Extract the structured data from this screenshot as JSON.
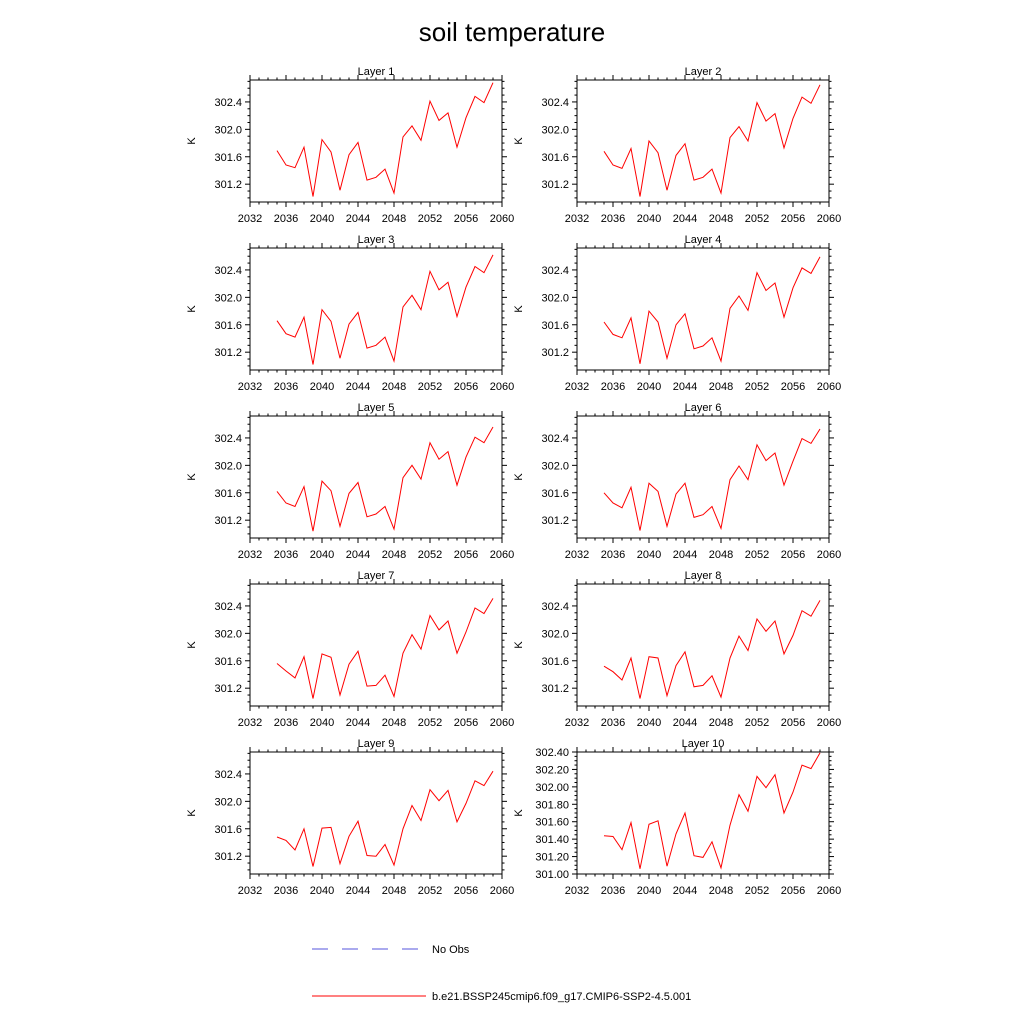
{
  "figure": {
    "title": "soil temperature"
  },
  "chart_data": [
    {
      "type": "line",
      "title": "Layer 1",
      "ylabel": "K",
      "xlim": [
        2032,
        2060
      ],
      "ylim": [
        300.94,
        302.72
      ],
      "xticks": [
        2032,
        2036,
        2040,
        2044,
        2048,
        2052,
        2056,
        2060
      ],
      "yticks": [
        301.2,
        301.6,
        302.0,
        302.4
      ],
      "ytick_labels": [
        "301.2",
        "301.6",
        "302.0",
        "302.4"
      ],
      "x": [
        2035,
        2036,
        2037,
        2038,
        2039,
        2040,
        2041,
        2042,
        2043,
        2044,
        2045,
        2046,
        2047,
        2048,
        2049,
        2050,
        2051,
        2052,
        2053,
        2054,
        2055,
        2056,
        2057,
        2058,
        2059
      ],
      "series": [
        {
          "name": "b.e21.BSSP245cmip6.f09_g17.CMIP6-SSP2-4.5.001",
          "color": "#ff0000",
          "values": [
            301.69,
            301.48,
            301.44,
            301.74,
            301.02,
            301.85,
            301.67,
            301.11,
            301.63,
            301.81,
            301.26,
            301.3,
            301.42,
            301.07,
            301.89,
            302.05,
            301.84,
            302.41,
            302.13,
            302.24,
            301.74,
            302.17,
            302.48,
            302.39,
            302.68
          ]
        }
      ]
    },
    {
      "type": "line",
      "title": "Layer 2",
      "ylabel": "K",
      "xlim": [
        2032,
        2060
      ],
      "ylim": [
        300.94,
        302.72
      ],
      "xticks": [
        2032,
        2036,
        2040,
        2044,
        2048,
        2052,
        2056,
        2060
      ],
      "yticks": [
        301.2,
        301.6,
        302.0,
        302.4
      ],
      "ytick_labels": [
        "301.2",
        "301.6",
        "302.0",
        "302.4"
      ],
      "x": [
        2035,
        2036,
        2037,
        2038,
        2039,
        2040,
        2041,
        2042,
        2043,
        2044,
        2045,
        2046,
        2047,
        2048,
        2049,
        2050,
        2051,
        2052,
        2053,
        2054,
        2055,
        2056,
        2057,
        2058,
        2059
      ],
      "series": [
        {
          "name": "b.e21.BSSP245cmip6.f09_g17.CMIP6-SSP2-4.5.001",
          "color": "#ff0000",
          "values": [
            301.68,
            301.48,
            301.43,
            301.72,
            301.02,
            301.83,
            301.66,
            301.11,
            301.62,
            301.79,
            301.26,
            301.3,
            301.42,
            301.07,
            301.88,
            302.04,
            301.83,
            302.39,
            302.12,
            302.23,
            301.73,
            302.16,
            302.47,
            302.38,
            302.65
          ]
        }
      ]
    },
    {
      "type": "line",
      "title": "Layer 3",
      "ylabel": "K",
      "xlim": [
        2032,
        2060
      ],
      "ylim": [
        300.94,
        302.72
      ],
      "xticks": [
        2032,
        2036,
        2040,
        2044,
        2048,
        2052,
        2056,
        2060
      ],
      "yticks": [
        301.2,
        301.6,
        302.0,
        302.4
      ],
      "ytick_labels": [
        "301.2",
        "301.6",
        "302.0",
        "302.4"
      ],
      "x": [
        2035,
        2036,
        2037,
        2038,
        2039,
        2040,
        2041,
        2042,
        2043,
        2044,
        2045,
        2046,
        2047,
        2048,
        2049,
        2050,
        2051,
        2052,
        2053,
        2054,
        2055,
        2056,
        2057,
        2058,
        2059
      ],
      "series": [
        {
          "name": "b.e21.BSSP245cmip6.f09_g17.CMIP6-SSP2-4.5.001",
          "color": "#ff0000",
          "values": [
            301.66,
            301.47,
            301.42,
            301.71,
            301.02,
            301.82,
            301.65,
            301.11,
            301.61,
            301.78,
            301.26,
            301.3,
            301.42,
            301.07,
            301.86,
            302.03,
            301.82,
            302.38,
            302.11,
            302.22,
            301.72,
            302.15,
            302.45,
            302.36,
            302.62
          ]
        }
      ]
    },
    {
      "type": "line",
      "title": "Layer 4",
      "ylabel": "K",
      "xlim": [
        2032,
        2060
      ],
      "ylim": [
        300.94,
        302.72
      ],
      "xticks": [
        2032,
        2036,
        2040,
        2044,
        2048,
        2052,
        2056,
        2060
      ],
      "yticks": [
        301.2,
        301.6,
        302.0,
        302.4
      ],
      "ytick_labels": [
        "301.2",
        "301.6",
        "302.0",
        "302.4"
      ],
      "x": [
        2035,
        2036,
        2037,
        2038,
        2039,
        2040,
        2041,
        2042,
        2043,
        2044,
        2045,
        2046,
        2047,
        2048,
        2049,
        2050,
        2051,
        2052,
        2053,
        2054,
        2055,
        2056,
        2057,
        2058,
        2059
      ],
      "series": [
        {
          "name": "b.e21.BSSP245cmip6.f09_g17.CMIP6-SSP2-4.5.001",
          "color": "#ff0000",
          "values": [
            301.64,
            301.46,
            301.41,
            301.7,
            301.03,
            301.8,
            301.64,
            301.11,
            301.6,
            301.76,
            301.25,
            301.29,
            301.41,
            301.07,
            301.84,
            302.02,
            301.81,
            302.36,
            302.1,
            302.21,
            301.71,
            302.14,
            302.43,
            302.35,
            302.59
          ]
        }
      ]
    },
    {
      "type": "line",
      "title": "Layer 5",
      "ylabel": "K",
      "xlim": [
        2032,
        2060
      ],
      "ylim": [
        300.94,
        302.72
      ],
      "xticks": [
        2032,
        2036,
        2040,
        2044,
        2048,
        2052,
        2056,
        2060
      ],
      "yticks": [
        301.2,
        301.6,
        302.0,
        302.4
      ],
      "ytick_labels": [
        "301.2",
        "301.6",
        "302.0",
        "302.4"
      ],
      "x": [
        2035,
        2036,
        2037,
        2038,
        2039,
        2040,
        2041,
        2042,
        2043,
        2044,
        2045,
        2046,
        2047,
        2048,
        2049,
        2050,
        2051,
        2052,
        2053,
        2054,
        2055,
        2056,
        2057,
        2058,
        2059
      ],
      "series": [
        {
          "name": "b.e21.BSSP245cmip6.f09_g17.CMIP6-SSP2-4.5.001",
          "color": "#ff0000",
          "values": [
            301.62,
            301.45,
            301.4,
            301.69,
            301.04,
            301.77,
            301.63,
            301.11,
            301.59,
            301.75,
            301.25,
            301.29,
            301.4,
            301.07,
            301.82,
            302.0,
            301.8,
            302.33,
            302.09,
            302.2,
            301.71,
            302.12,
            302.41,
            302.33,
            302.56
          ]
        }
      ]
    },
    {
      "type": "line",
      "title": "Layer 6",
      "ylabel": "K",
      "xlim": [
        2032,
        2060
      ],
      "ylim": [
        300.94,
        302.72
      ],
      "xticks": [
        2032,
        2036,
        2040,
        2044,
        2048,
        2052,
        2056,
        2060
      ],
      "yticks": [
        301.2,
        301.6,
        302.0,
        302.4
      ],
      "ytick_labels": [
        "301.2",
        "301.6",
        "302.0",
        "302.4"
      ],
      "x": [
        2035,
        2036,
        2037,
        2038,
        2039,
        2040,
        2041,
        2042,
        2043,
        2044,
        2045,
        2046,
        2047,
        2048,
        2049,
        2050,
        2051,
        2052,
        2053,
        2054,
        2055,
        2056,
        2057,
        2058,
        2059
      ],
      "series": [
        {
          "name": "b.e21.BSSP245cmip6.f09_g17.CMIP6-SSP2-4.5.001",
          "color": "#ff0000",
          "values": [
            301.6,
            301.45,
            301.38,
            301.68,
            301.05,
            301.74,
            301.62,
            301.11,
            301.58,
            301.74,
            301.24,
            301.28,
            301.4,
            301.08,
            301.79,
            301.99,
            301.79,
            302.3,
            302.07,
            302.18,
            301.71,
            302.06,
            302.39,
            302.32,
            302.53
          ]
        }
      ]
    },
    {
      "type": "line",
      "title": "Layer 7",
      "ylabel": "K",
      "xlim": [
        2032,
        2060
      ],
      "ylim": [
        300.94,
        302.72
      ],
      "xticks": [
        2032,
        2036,
        2040,
        2044,
        2048,
        2052,
        2056,
        2060
      ],
      "yticks": [
        301.2,
        301.6,
        302.0,
        302.4
      ],
      "ytick_labels": [
        "301.2",
        "301.6",
        "302.0",
        "302.4"
      ],
      "x": [
        2035,
        2036,
        2037,
        2038,
        2039,
        2040,
        2041,
        2042,
        2043,
        2044,
        2045,
        2046,
        2047,
        2048,
        2049,
        2050,
        2051,
        2052,
        2053,
        2054,
        2055,
        2056,
        2057,
        2058,
        2059
      ],
      "series": [
        {
          "name": "b.e21.BSSP245cmip6.f09_g17.CMIP6-SSP2-4.5.001",
          "color": "#ff0000",
          "values": [
            301.56,
            301.45,
            301.35,
            301.66,
            301.05,
            301.7,
            301.65,
            301.1,
            301.55,
            301.74,
            301.23,
            301.24,
            301.39,
            301.08,
            301.71,
            301.98,
            301.77,
            302.26,
            302.05,
            302.18,
            301.71,
            302.02,
            302.37,
            302.29,
            302.51
          ]
        }
      ]
    },
    {
      "type": "line",
      "title": "Layer 8",
      "ylabel": "K",
      "xlim": [
        2032,
        2060
      ],
      "ylim": [
        300.94,
        302.72
      ],
      "xticks": [
        2032,
        2036,
        2040,
        2044,
        2048,
        2052,
        2056,
        2060
      ],
      "yticks": [
        301.2,
        301.6,
        302.0,
        302.4
      ],
      "ytick_labels": [
        "301.2",
        "301.6",
        "302.0",
        "302.4"
      ],
      "x": [
        2035,
        2036,
        2037,
        2038,
        2039,
        2040,
        2041,
        2042,
        2043,
        2044,
        2045,
        2046,
        2047,
        2048,
        2049,
        2050,
        2051,
        2052,
        2053,
        2054,
        2055,
        2056,
        2057,
        2058,
        2059
      ],
      "series": [
        {
          "name": "b.e21.BSSP245cmip6.f09_g17.CMIP6-SSP2-4.5.001",
          "color": "#ff0000",
          "values": [
            301.52,
            301.44,
            301.32,
            301.64,
            301.05,
            301.66,
            301.64,
            301.09,
            301.53,
            301.73,
            301.22,
            301.24,
            301.38,
            301.07,
            301.64,
            301.96,
            301.75,
            302.21,
            302.03,
            302.18,
            301.7,
            301.97,
            302.33,
            302.25,
            302.48
          ]
        }
      ]
    },
    {
      "type": "line",
      "title": "Layer 9",
      "ylabel": "K",
      "xlim": [
        2032,
        2060
      ],
      "ylim": [
        300.94,
        302.72
      ],
      "xticks": [
        2032,
        2036,
        2040,
        2044,
        2048,
        2052,
        2056,
        2060
      ],
      "yticks": [
        301.2,
        301.6,
        302.0,
        302.4
      ],
      "ytick_labels": [
        "301.2",
        "301.6",
        "302.0",
        "302.4"
      ],
      "x": [
        2035,
        2036,
        2037,
        2038,
        2039,
        2040,
        2041,
        2042,
        2043,
        2044,
        2045,
        2046,
        2047,
        2048,
        2049,
        2050,
        2051,
        2052,
        2053,
        2054,
        2055,
        2056,
        2057,
        2058,
        2059
      ],
      "series": [
        {
          "name": "b.e21.BSSP245cmip6.f09_g17.CMIP6-SSP2-4.5.001",
          "color": "#ff0000",
          "values": [
            301.48,
            301.43,
            301.29,
            301.6,
            301.05,
            301.61,
            301.62,
            301.09,
            301.49,
            301.71,
            301.21,
            301.2,
            301.37,
            301.07,
            301.6,
            301.94,
            301.72,
            302.17,
            302.01,
            302.16,
            301.7,
            301.97,
            302.3,
            302.23,
            302.44
          ]
        }
      ]
    },
    {
      "type": "line",
      "title": "Layer 10",
      "ylabel": "K",
      "xlim": [
        2032,
        2060
      ],
      "ylim": [
        301.0,
        302.4
      ],
      "xticks": [
        2032,
        2036,
        2040,
        2044,
        2048,
        2052,
        2056,
        2060
      ],
      "yticks": [
        301.0,
        301.2,
        301.4,
        301.6,
        301.8,
        302.0,
        302.2,
        302.4
      ],
      "ytick_labels": [
        "301.00",
        "301.20",
        "301.40",
        "301.60",
        "301.80",
        "302.00",
        "302.20",
        "302.40"
      ],
      "x": [
        2035,
        2036,
        2037,
        2038,
        2039,
        2040,
        2041,
        2042,
        2043,
        2044,
        2045,
        2046,
        2047,
        2048,
        2049,
        2050,
        2051,
        2052,
        2053,
        2054,
        2055,
        2056,
        2057,
        2058,
        2059
      ],
      "series": [
        {
          "name": "b.e21.BSSP245cmip6.f09_g17.CMIP6-SSP2-4.5.001",
          "color": "#ff0000",
          "values": [
            301.44,
            301.43,
            301.28,
            301.59,
            301.06,
            301.57,
            301.61,
            301.09,
            301.46,
            301.7,
            301.21,
            301.19,
            301.37,
            301.07,
            301.56,
            301.91,
            301.72,
            302.12,
            301.99,
            302.14,
            301.7,
            301.94,
            302.25,
            302.21,
            302.39
          ]
        }
      ]
    }
  ],
  "legend": {
    "placement": "bottom",
    "entries": [
      {
        "label": "No Obs",
        "color": "#5555dd",
        "style": "dashed"
      },
      {
        "label": "b.e21.BSSP245cmip6.f09_g17.CMIP6-SSP2-4.5.001",
        "color": "#ff0000",
        "style": "solid"
      }
    ]
  }
}
